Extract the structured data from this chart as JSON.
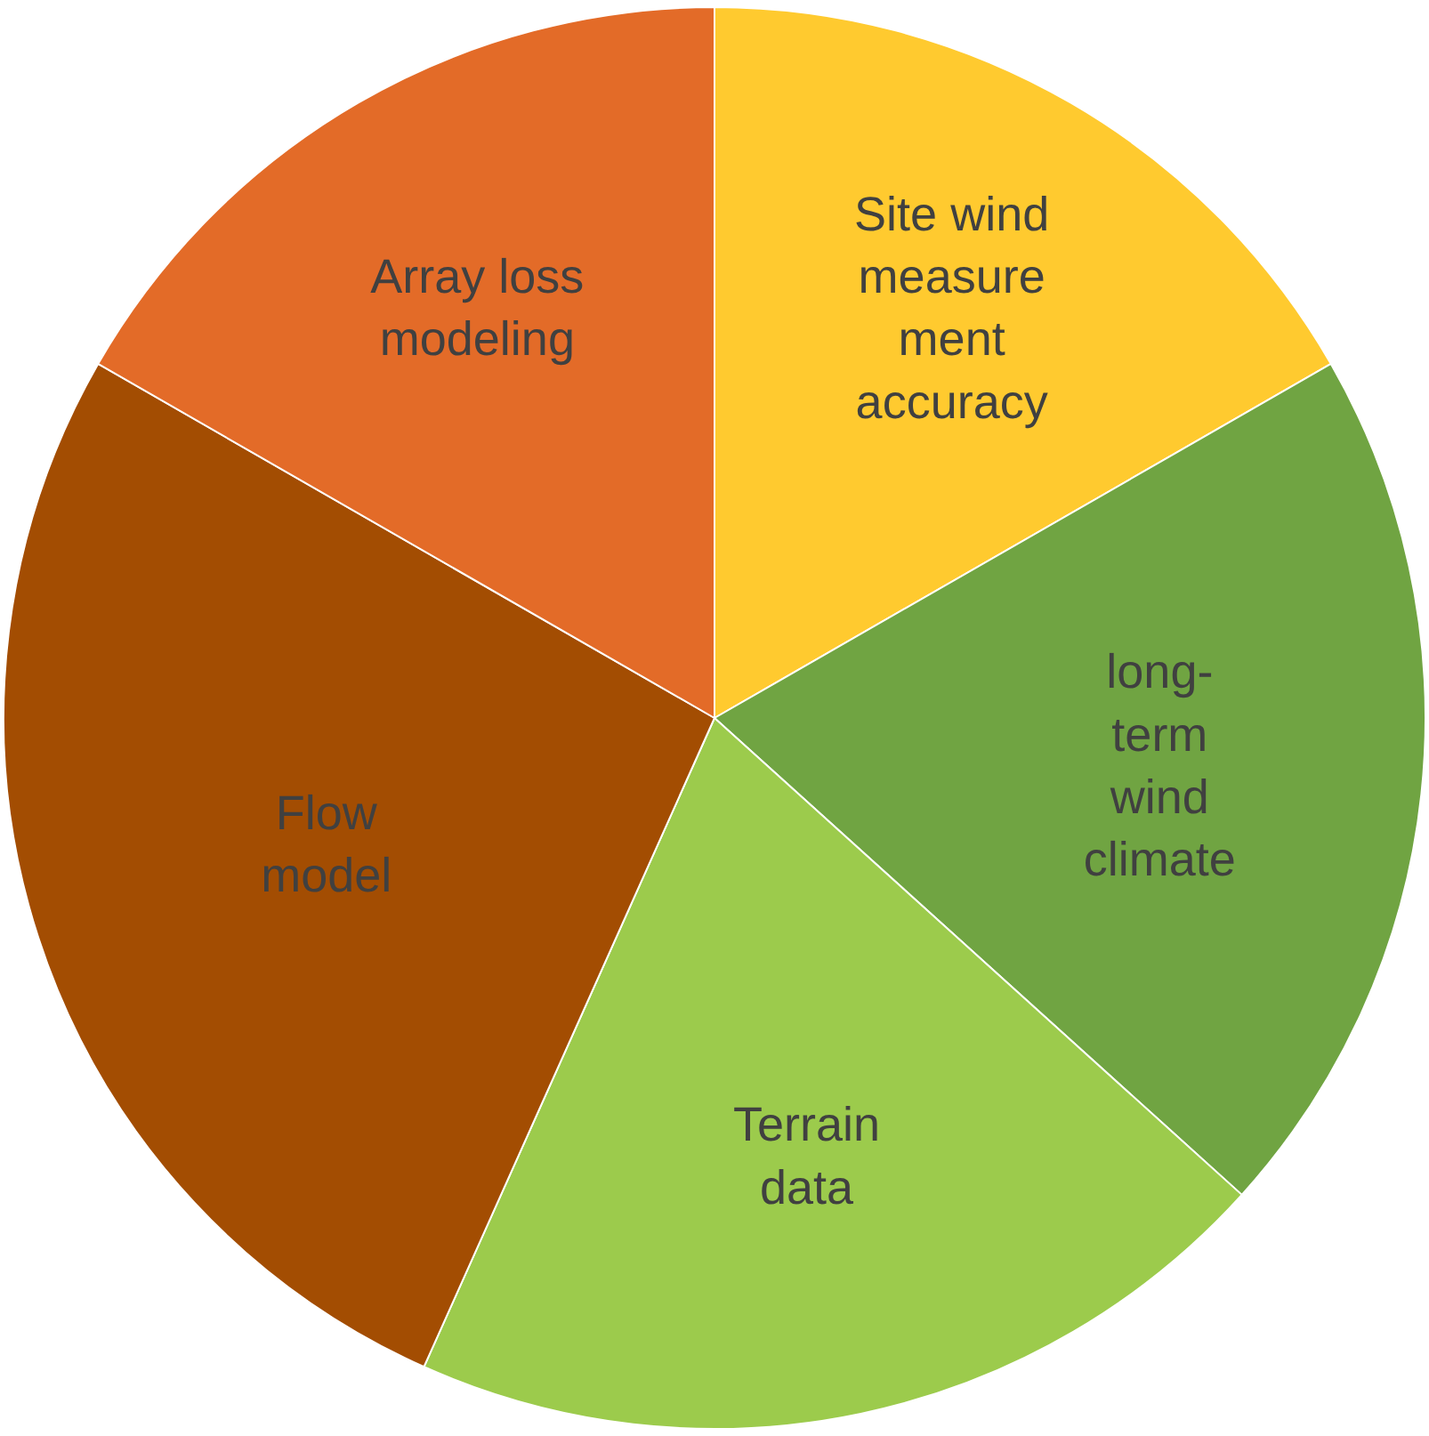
{
  "chart_data": {
    "type": "pie",
    "categories": [
      "Site wind\nmeasure\nment\naccuracy",
      "long-\nterm\nwind\nclimate",
      "Terrain\ndata",
      "Flow\nmodel",
      "Array loss\nmodeling"
    ],
    "values": [
      16.7,
      20,
      20,
      26.6,
      16.7
    ],
    "colors": [
      "#ffca2f",
      "#70a442",
      "#9ccb4c",
      "#a34d02",
      "#e36b28"
    ],
    "legend": false
  }
}
